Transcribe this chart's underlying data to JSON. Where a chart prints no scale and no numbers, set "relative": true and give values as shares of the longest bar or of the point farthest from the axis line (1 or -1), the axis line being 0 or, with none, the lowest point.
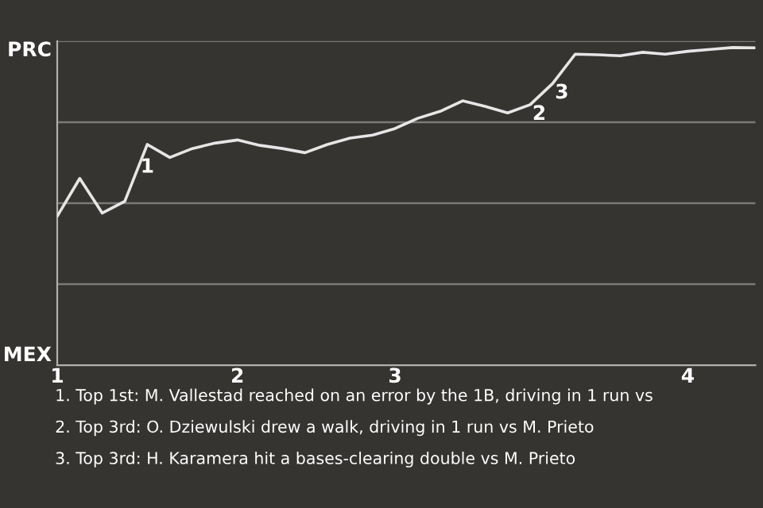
{
  "chart_data": {
    "type": "line",
    "categories": [
      "1",
      null,
      null,
      null,
      null,
      null,
      null,
      null,
      "2",
      null,
      null,
      null,
      null,
      null,
      null,
      "3",
      null,
      null,
      null,
      null,
      null,
      null,
      null,
      null,
      null,
      null,
      null,
      null,
      "4",
      null,
      null,
      null
    ],
    "series": [
      {
        "color": "#e6e6e6",
        "values": [
          0.469,
          0.588,
          0.479,
          0.516,
          0.695,
          0.654,
          0.682,
          0.699,
          0.709,
          0.692,
          0.682,
          0.669,
          0.695,
          0.715,
          0.724,
          0.745,
          0.777,
          0.799,
          0.832,
          0.815,
          0.794,
          0.82,
          0.887,
          0.979,
          0.977,
          0.974,
          0.985,
          0.979,
          0.988,
          0.994,
          1,
          0.999
        ]
      }
    ],
    "relative": true,
    "grid": "y",
    "annotations": [
      "PRC",
      "MEX",
      {
        "text": "1",
        "y": 0.695
      },
      {
        "text": "2",
        "y": 0.82
      },
      {
        "text": "3",
        "y": 0.887
      },
      "1. Top 1st: M. Vallestad reached on an error by the 1B, driving in 1 run vs",
      "2. Top 3rd: O. Dziewulski drew a walk, driving in 1 run vs M. Prieto",
      "3. Top 3rd: H. Karamera hit a bases-clearing double vs M. Prieto"
    ]
  }
}
